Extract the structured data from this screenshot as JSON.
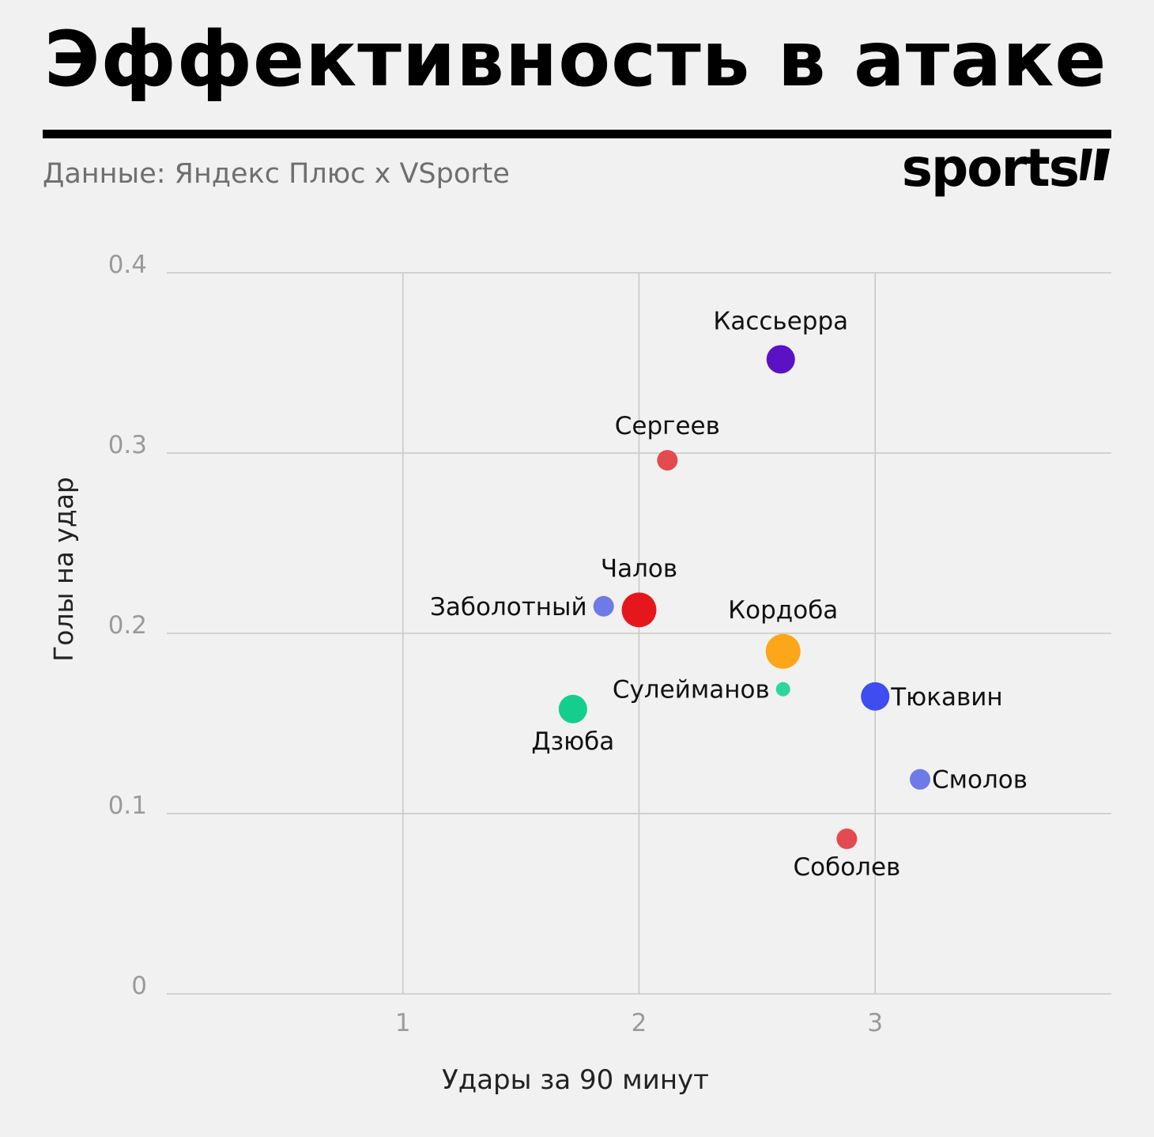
{
  "header": {
    "title": "Эффективность в атаке",
    "source": "Данные: Яндекс Плюс x VSporte",
    "logo_text": "sports"
  },
  "chart_data": {
    "type": "scatter",
    "xlabel": "Удары за 90 минут",
    "ylabel": "Голы на удар",
    "xlim": [
      0,
      4
    ],
    "ylim": [
      0,
      0.4
    ],
    "x_ticks": [
      1,
      2,
      3
    ],
    "y_ticks": [
      0,
      0.1,
      0.2,
      0.3,
      0.4
    ],
    "x_tick_labels": [
      "1",
      "2",
      "3"
    ],
    "y_tick_labels": [
      "0",
      "0.1",
      "0.2",
      "0.3",
      "0.4"
    ],
    "grid": true,
    "points": [
      {
        "name": "Кассьерра",
        "x": 2.6,
        "y": 0.352,
        "size": "medium",
        "color": "#5b12c4",
        "label_pos": "top"
      },
      {
        "name": "Сергеев",
        "x": 2.12,
        "y": 0.296,
        "size": "small",
        "color": "#e34b4f",
        "label_pos": "top"
      },
      {
        "name": "Чалов",
        "x": 2.0,
        "y": 0.213,
        "size": "large",
        "color": "#e5171c",
        "label_pos": "top"
      },
      {
        "name": "Заболотный",
        "x": 1.85,
        "y": 0.215,
        "size": "small",
        "color": "#6e7ae8",
        "label_pos": "left"
      },
      {
        "name": "Кордоба",
        "x": 2.61,
        "y": 0.19,
        "size": "large",
        "color": "#fca619",
        "label_pos": "top"
      },
      {
        "name": "Сулейманов",
        "x": 2.61,
        "y": 0.169,
        "size": "tiny",
        "color": "#2fd69c",
        "label_pos": "left"
      },
      {
        "name": "Тюкавин",
        "x": 3.0,
        "y": 0.165,
        "size": "medium",
        "color": "#3e4cf0",
        "label_pos": "right"
      },
      {
        "name": "Дзюба",
        "x": 1.72,
        "y": 0.158,
        "size": "medium",
        "color": "#13ce8c",
        "label_pos": "bottom"
      },
      {
        "name": "Смолов",
        "x": 3.19,
        "y": 0.119,
        "size": "small",
        "color": "#6e7ae8",
        "label_pos": "right"
      },
      {
        "name": "Соболев",
        "x": 2.88,
        "y": 0.086,
        "size": "small",
        "color": "#e34b4f",
        "label_pos": "bottom"
      }
    ]
  }
}
